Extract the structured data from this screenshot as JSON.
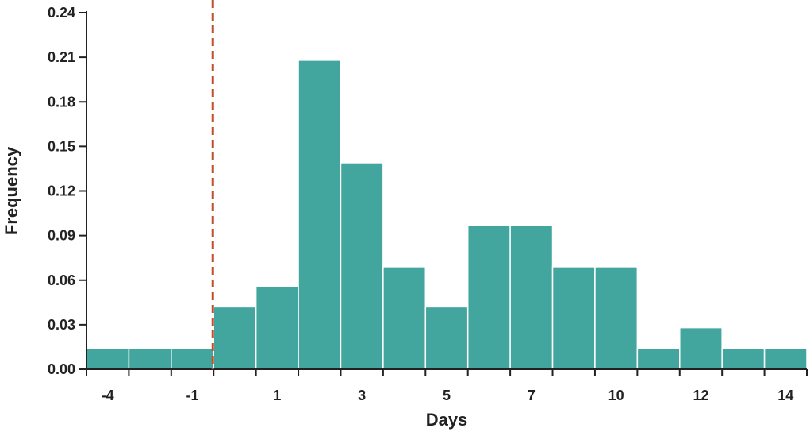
{
  "chart_data": {
    "type": "bar",
    "xlabel": "Days",
    "ylabel": "Frequency",
    "ylim": [
      0,
      0.24
    ],
    "y_ticks": [
      "0.00",
      "0.03",
      "0.06",
      "0.09",
      "0.12",
      "0.15",
      "0.18",
      "0.21",
      "0.24"
    ],
    "x_tick_labels": [
      "-4",
      "-1",
      "1",
      "3",
      "5",
      "7",
      "10",
      "12",
      "14"
    ],
    "bins": [
      "-4",
      "-3",
      "-2",
      "0",
      "1",
      "2",
      "3",
      "4",
      "5",
      "6",
      "7",
      "9",
      "10",
      "11",
      "12",
      "13",
      "14"
    ],
    "values": [
      0.014,
      0.014,
      0.014,
      0.042,
      0.056,
      0.208,
      0.139,
      0.069,
      0.042,
      0.097,
      0.097,
      0.069,
      0.069,
      0.014,
      0.028,
      0.014,
      0.014
    ],
    "reference_line": {
      "style": "dashed",
      "color": "#c0502a",
      "between_bins": [
        2,
        3
      ]
    },
    "grid": false,
    "colors": {
      "bar": "#42a69f",
      "bar_edge": "#ffffff",
      "axis": "#222222",
      "reference": "#c0502a"
    }
  }
}
